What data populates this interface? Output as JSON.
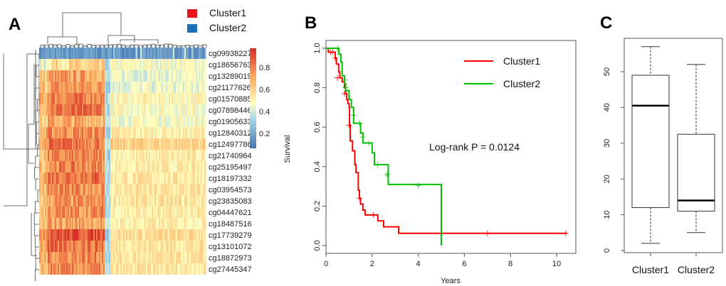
{
  "panels": {
    "a": "A",
    "b": "B",
    "c": "C"
  },
  "colors": {
    "cluster1": "#e8141c",
    "cluster2": "#1f6fba",
    "km_cluster1": "#ff0000",
    "km_cluster2": "#00c000",
    "heat_low": "#4575b4",
    "heat_mid": "#ffffbf",
    "heat_high": "#d73027"
  },
  "chart_data": [
    {
      "type": "heatmap",
      "legend": [
        "Cluster1",
        "Cluster2"
      ],
      "rows": [
        "cg09938227",
        "cg18656763",
        "cg13289019",
        "cg21177626",
        "cg01570885",
        "cg07898446",
        "cg01905633",
        "cg12840312",
        "cg12497786",
        "cg21740964",
        "cg25195497",
        "cg18197332",
        "cg03954573",
        "cg23835083",
        "cg04447621",
        "cg18487516",
        "cg17739279",
        "cg13101072",
        "cg18872973",
        "cg27445347"
      ],
      "row_level_cluster1": [
        0.1,
        0.55,
        0.7,
        0.72,
        0.78,
        0.8,
        0.68,
        0.75,
        0.8,
        0.74,
        0.76,
        0.82,
        0.74,
        0.72,
        0.74,
        0.7,
        0.88,
        0.8,
        0.76,
        0.74
      ],
      "row_level_cluster2": [
        0.1,
        0.45,
        0.42,
        0.42,
        0.48,
        0.46,
        0.45,
        0.5,
        0.58,
        0.5,
        0.5,
        0.52,
        0.52,
        0.52,
        0.5,
        0.5,
        0.55,
        0.53,
        0.52,
        0.52
      ],
      "colorbar_ticks": [
        "0.8",
        "0.6",
        "0.4",
        "0.2"
      ],
      "colorbar_range": [
        0.05,
        0.95
      ]
    },
    {
      "type": "line",
      "subtype": "kaplan-meier",
      "xlabel": "Years",
      "ylabel": "Survival",
      "xlim": [
        0,
        10.5
      ],
      "ylim": [
        0,
        1
      ],
      "xticks": [
        "0",
        "2",
        "4",
        "6",
        "8",
        "10"
      ],
      "yticks": [
        "0.0",
        "0.2",
        "0.4",
        "0.6",
        "0.8",
        "1.0"
      ],
      "legend_position": "top-right",
      "annotation": "Log-rank P = 0.0124",
      "series": [
        {
          "name": "Cluster1",
          "steps": [
            [
              0,
              1
            ],
            [
              0.1,
              0.98
            ],
            [
              0.4,
              0.95
            ],
            [
              0.45,
              0.92
            ],
            [
              0.55,
              0.88
            ],
            [
              0.6,
              0.85
            ],
            [
              0.7,
              0.83
            ],
            [
              0.8,
              0.8
            ],
            [
              0.85,
              0.77
            ],
            [
              0.9,
              0.74
            ],
            [
              0.95,
              0.72
            ],
            [
              1.0,
              0.7
            ],
            [
              1.02,
              0.61
            ],
            [
              1.05,
              0.53
            ],
            [
              1.15,
              0.48
            ],
            [
              1.25,
              0.41
            ],
            [
              1.3,
              0.37
            ],
            [
              1.4,
              0.28
            ],
            [
              1.45,
              0.24
            ],
            [
              1.5,
              0.21
            ],
            [
              1.6,
              0.18
            ],
            [
              1.7,
              0.155
            ],
            [
              2.25,
              0.125
            ],
            [
              2.5,
              0.095
            ],
            [
              3.15,
              0.062
            ]
          ],
          "end": 10.45,
          "censored": [
            [
              0.2,
              0.98
            ],
            [
              0.3,
              0.98
            ],
            [
              0.4,
              0.95
            ],
            [
              0.5,
              0.85
            ],
            [
              0.8,
              0.77
            ],
            [
              1.0,
              0.61
            ],
            [
              1.45,
              0.24
            ],
            [
              2.05,
              0.155
            ],
            [
              7.0,
              0.062
            ],
            [
              10.4,
              0.062
            ]
          ]
        },
        {
          "name": "Cluster2",
          "steps": [
            [
              0,
              1
            ],
            [
              0.55,
              0.97
            ],
            [
              0.65,
              0.93
            ],
            [
              0.7,
              0.86
            ],
            [
              0.8,
              0.82
            ],
            [
              0.85,
              0.785
            ],
            [
              1.0,
              0.74
            ],
            [
              1.1,
              0.7
            ],
            [
              1.2,
              0.62
            ],
            [
              1.5,
              0.57
            ],
            [
              1.6,
              0.52
            ],
            [
              2.0,
              0.47
            ],
            [
              2.1,
              0.41
            ],
            [
              2.7,
              0.31
            ],
            [
              5.0,
              0.0
            ]
          ],
          "end": 5.0,
          "censored": [
            [
              0.5,
              1.0
            ],
            [
              0.8,
              0.84
            ],
            [
              0.85,
              0.8
            ],
            [
              1.2,
              0.66
            ],
            [
              1.45,
              0.62
            ],
            [
              1.6,
              0.55
            ],
            [
              1.85,
              0.52
            ],
            [
              2.25,
              0.41
            ],
            [
              2.65,
              0.36
            ],
            [
              4.0,
              0.305
            ]
          ]
        }
      ]
    },
    {
      "type": "box",
      "categories": [
        "Cluster1",
        "Cluster2"
      ],
      "yticks": [
        "0",
        "10",
        "20",
        "30",
        "40",
        "50"
      ],
      "ylim": [
        0,
        60
      ],
      "boxes": [
        {
          "min": 2,
          "q1": 12,
          "median": 40.5,
          "q3": 49,
          "max": 57
        },
        {
          "min": 5,
          "q1": 11,
          "median": 14,
          "q3": 32.5,
          "max": 52
        }
      ]
    }
  ]
}
